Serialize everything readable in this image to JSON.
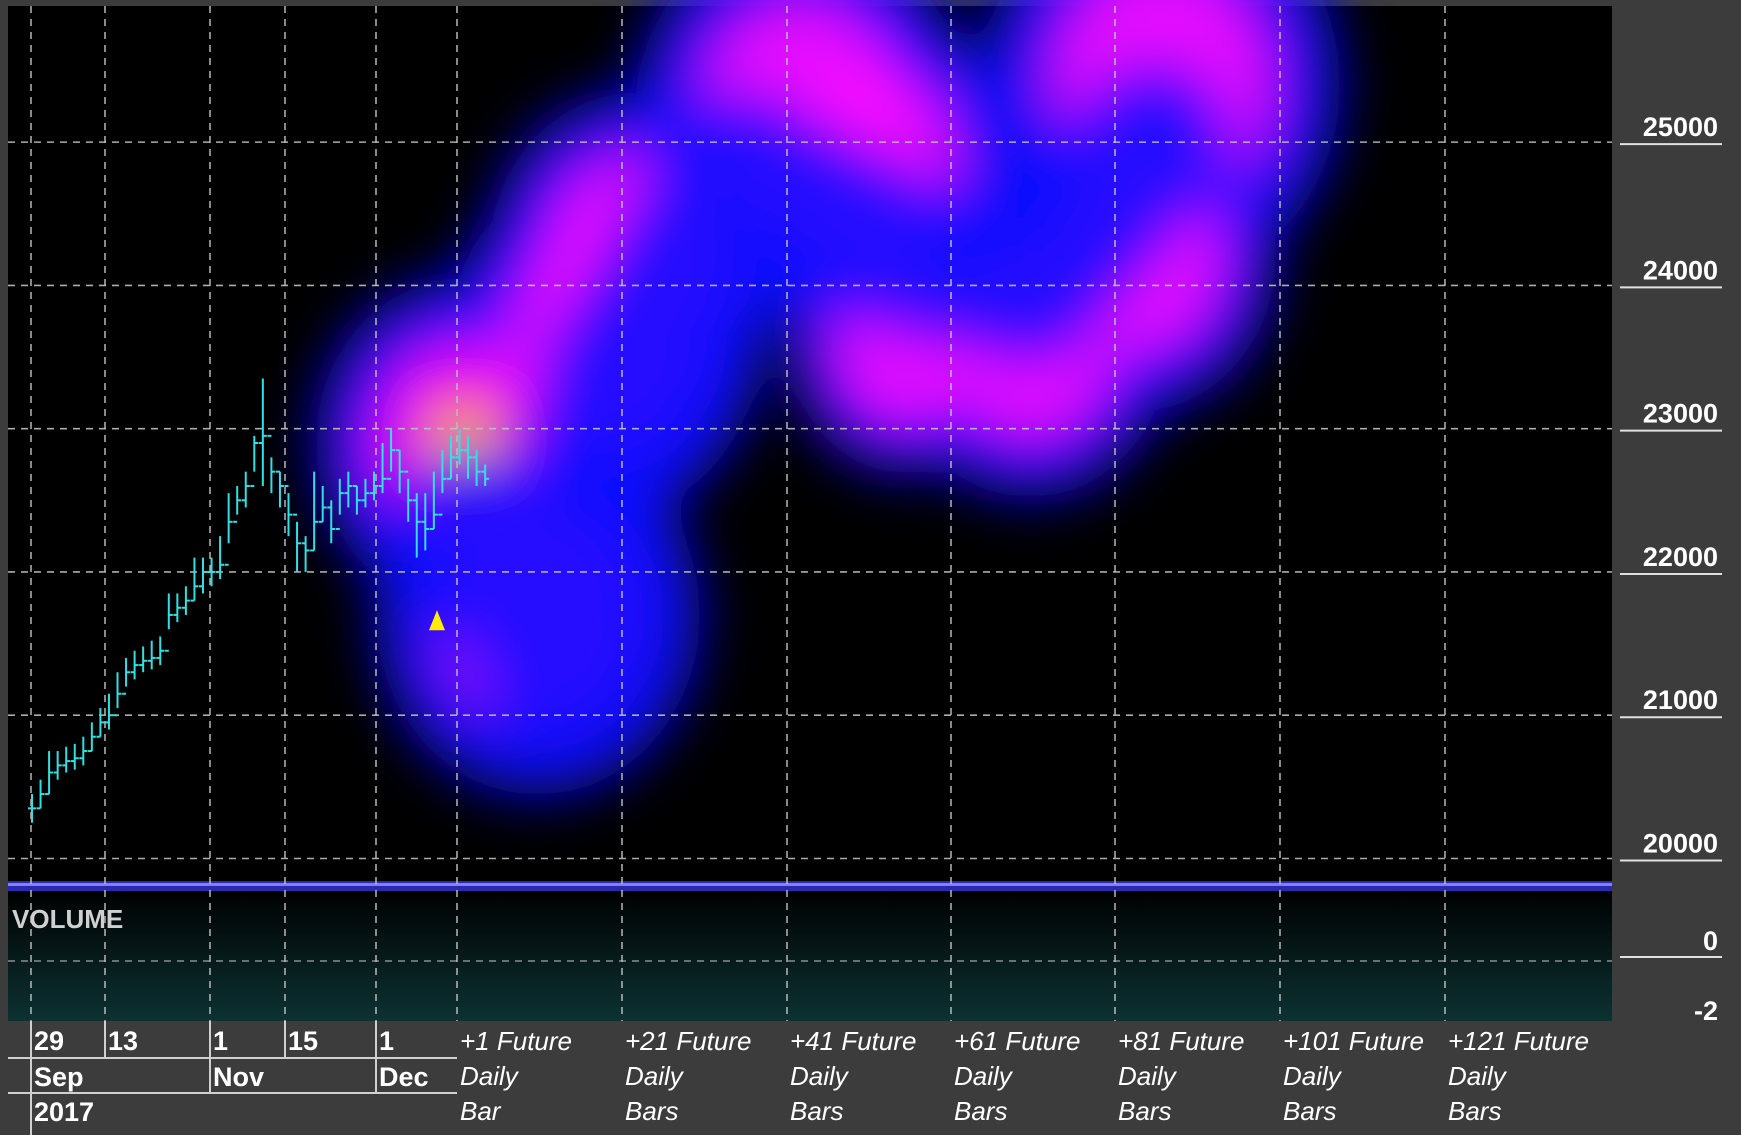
{
  "chart_data": {
    "type": "line",
    "subtype": "ohlc-bars-with-forecast-heatmap",
    "colors": {
      "background": "#000000",
      "price_bars": "#33e0e0",
      "grid": "#bfbfbf",
      "marker": "#ffee00",
      "heat_low": "#1010ff",
      "heat_mid": "#ff10ff",
      "heat_high": "#ff1010",
      "heat_peak": "#ffff30",
      "volume_panel": "#0a2a2a",
      "axis_panel": "#3c3c3c"
    },
    "y_axis": {
      "ticks": [
        "25000",
        "24000",
        "23000",
        "22000",
        "21000",
        "20000"
      ],
      "tick_values": [
        25000,
        24000,
        23000,
        22000,
        21000,
        20000
      ],
      "ylim": [
        19850,
        25950
      ]
    },
    "volume_axis": {
      "label": "VOLUME",
      "ticks": [
        "0",
        "-2"
      ]
    },
    "x_axis": {
      "day_labels": [
        "29",
        "13",
        "1",
        "15",
        "1"
      ],
      "month_labels": [
        "Sep",
        "Nov",
        "Dec"
      ],
      "year_label": "2017",
      "future_labels": [
        {
          "l1": "+1 Future",
          "l2": "Daily",
          "l3": "Bar"
        },
        {
          "l1": "+21 Future",
          "l2": "Daily",
          "l3": "Bars"
        },
        {
          "l1": "+41 Future",
          "l2": "Daily",
          "l3": "Bars"
        },
        {
          "l1": "+61 Future",
          "l2": "Daily",
          "l3": "Bars"
        },
        {
          "l1": "+81 Future",
          "l2": "Daily",
          "l3": "Bars"
        },
        {
          "l1": "+101 Future",
          "l2": "Daily",
          "l3": "Bars"
        },
        {
          "l1": "+121 Future",
          "l2": "Daily",
          "l3": "Bars"
        }
      ]
    },
    "price_series": {
      "name": "",
      "closes": [
        20350,
        20450,
        20600,
        20650,
        20680,
        20700,
        20750,
        20850,
        20950,
        21000,
        21150,
        21300,
        21350,
        21380,
        21400,
        21450,
        21700,
        21750,
        21800,
        21900,
        22000,
        22000,
        22050,
        22350,
        22500,
        22600,
        22900,
        22950,
        22700,
        22600,
        22400,
        22200,
        22150,
        22350,
        22450,
        22300,
        22550,
        22600,
        22500,
        22550,
        22600,
        22650,
        22850,
        22700,
        22500,
        22350,
        22300,
        22400,
        22650,
        22800,
        22850,
        22800,
        22700,
        22650
      ],
      "highs": [
        20450,
        20550,
        20750,
        20750,
        20780,
        20800,
        20850,
        20950,
        21050,
        21150,
        21300,
        21400,
        21450,
        21480,
        21520,
        21550,
        21850,
        21850,
        21900,
        22100,
        22100,
        22100,
        22250,
        22550,
        22600,
        22700,
        22950,
        23350,
        22800,
        22700,
        22550,
        22350,
        22250,
        22700,
        22600,
        22500,
        22650,
        22700,
        22600,
        22650,
        22700,
        22900,
        23000,
        22850,
        22650,
        22550,
        22550,
        22700,
        22850,
        22950,
        23000,
        22950,
        22850,
        22750
      ],
      "lows": [
        20250,
        20350,
        20450,
        20550,
        20600,
        20620,
        20650,
        20750,
        20850,
        20900,
        21050,
        21200,
        21250,
        21300,
        21320,
        21350,
        21600,
        21650,
        21700,
        21800,
        21850,
        21900,
        21950,
        22200,
        22400,
        22450,
        22700,
        22600,
        22550,
        22450,
        22250,
        22000,
        22000,
        22150,
        22350,
        22200,
        22400,
        22450,
        22400,
        22450,
        22500,
        22550,
        22700,
        22550,
        22350,
        22100,
        22150,
        22300,
        22550,
        22650,
        22750,
        22650,
        22600,
        22600
      ]
    },
    "marker": {
      "type": "triangle-up",
      "price": 21900
    },
    "forecast_heatmap": {
      "blobs": [
        {
          "future_bar": 1,
          "price": 22900,
          "spread_price": 550,
          "intensity": 1.0
        },
        {
          "future_bar": 10,
          "price": 21700,
          "spread_price": 800,
          "intensity": 0.45
        },
        {
          "future_bar": 18,
          "price": 23600,
          "spread_price": 700,
          "intensity": 0.62
        },
        {
          "future_bar": 22,
          "price": 24200,
          "spread_price": 700,
          "intensity": 0.52
        },
        {
          "future_bar": 42,
          "price": 25200,
          "spread_price": 750,
          "intensity": 0.6
        },
        {
          "future_bar": 50,
          "price": 24800,
          "spread_price": 700,
          "intensity": 0.55
        },
        {
          "future_bar": 55,
          "price": 23600,
          "spread_price": 600,
          "intensity": 0.4
        },
        {
          "future_bar": 70,
          "price": 23600,
          "spread_price": 700,
          "intensity": 0.42
        },
        {
          "future_bar": 86,
          "price": 25400,
          "spread_price": 800,
          "intensity": 0.62
        },
        {
          "future_bar": 83,
          "price": 24200,
          "spread_price": 700,
          "intensity": 0.42
        }
      ]
    }
  }
}
